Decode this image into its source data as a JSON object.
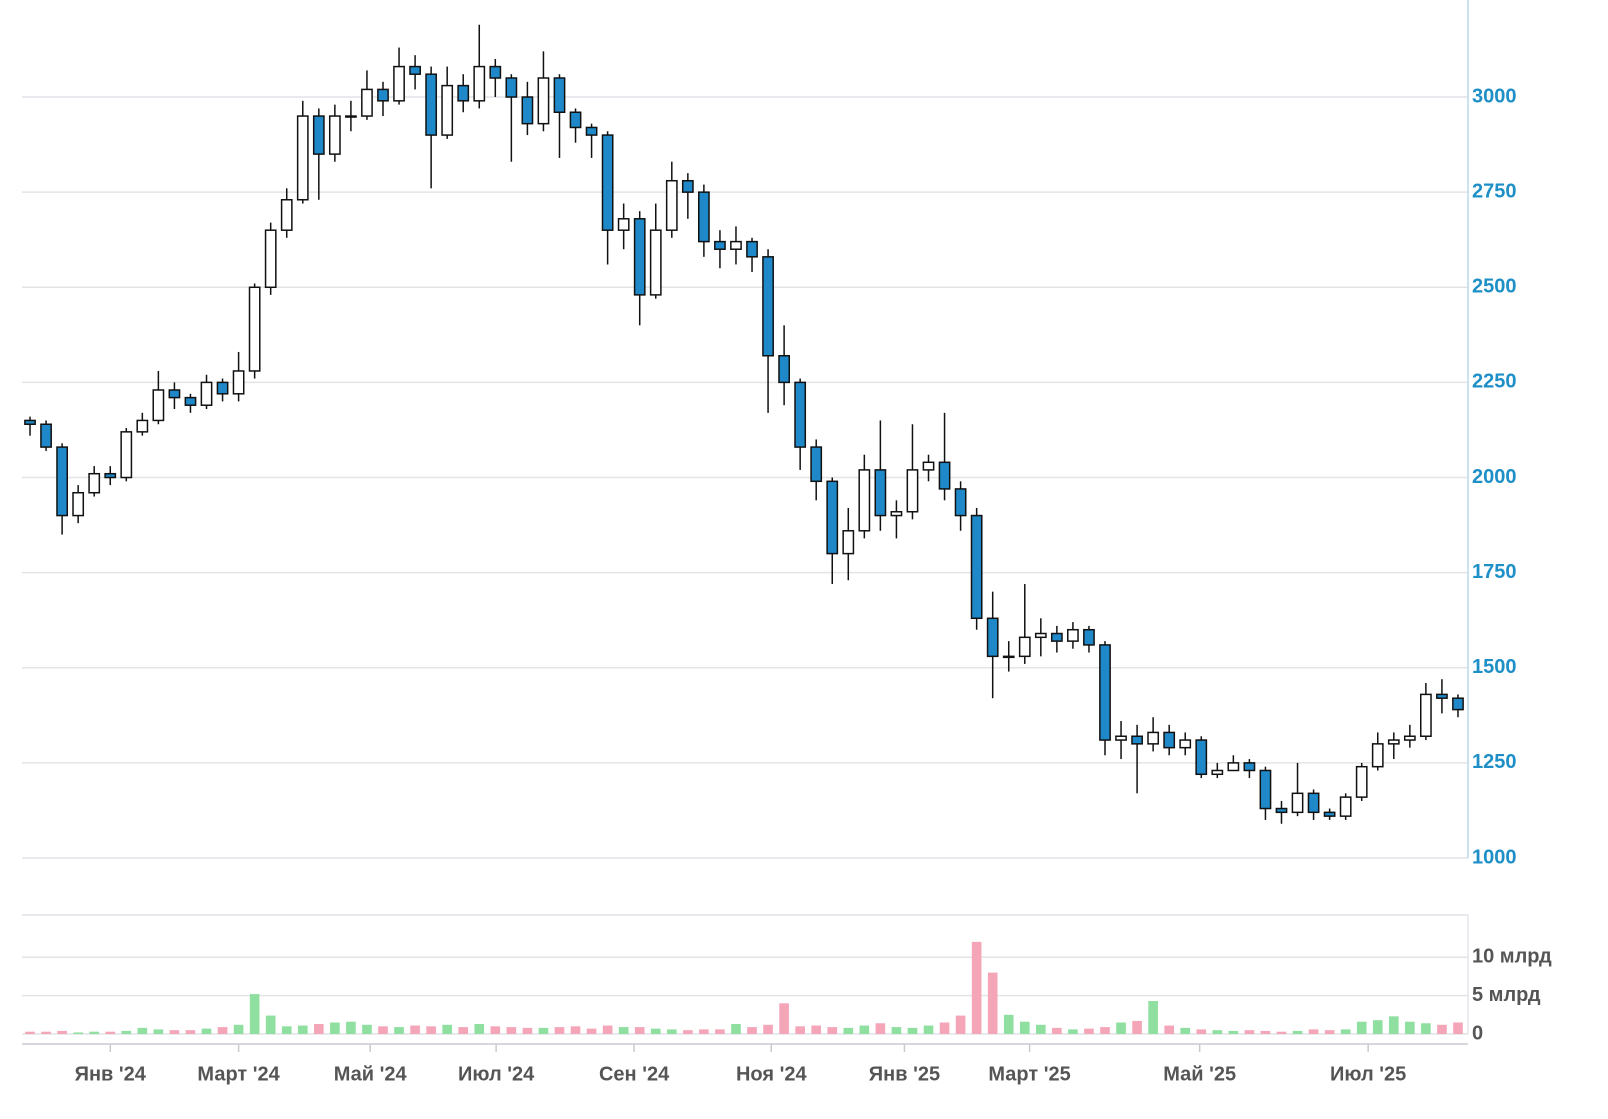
{
  "chart_data": {
    "type": "candlestick",
    "xlim": [
      -0.5,
      89.5
    ],
    "xticks": [
      {
        "value": 5.0,
        "label": "Янв '24"
      },
      {
        "value": 13.0,
        "label": "Март '24"
      },
      {
        "value": 21.2,
        "label": "Май '24"
      },
      {
        "value": 29.05,
        "label": "Июл '24"
      },
      {
        "value": 37.65,
        "label": "Сен '24"
      },
      {
        "value": 46.2,
        "label": "Ноя '24"
      },
      {
        "value": 54.5,
        "label": "Янв '25"
      },
      {
        "value": 62.3,
        "label": "Март '25"
      },
      {
        "value": 72.9,
        "label": "Май '25"
      },
      {
        "value": 83.4,
        "label": "Июл '25"
      }
    ],
    "ylim": [
      1000,
      3255
    ],
    "yticks": [
      1000,
      1250,
      1500,
      1750,
      2000,
      2250,
      2500,
      2750,
      3000
    ],
    "grid": true,
    "up_color": "#ffffff",
    "down_color": "#1e88c8",
    "open": [
      2150,
      2140,
      2080,
      1900,
      1960,
      2010,
      2000,
      2120,
      2150,
      2230,
      2210,
      2190,
      2250,
      2220,
      2280,
      2500,
      2650,
      2730,
      2950,
      2850,
      2950,
      2950,
      3020,
      2990,
      3080,
      3060,
      2900,
      3030,
      2990,
      3080,
      3050,
      3000,
      2930,
      3050,
      2960,
      2920,
      2900,
      2650,
      2680,
      2480,
      2650,
      2780,
      2750,
      2620,
      2600,
      2620,
      2580,
      2320,
      2250,
      2080,
      1990,
      1800,
      1860,
      2020,
      1900,
      1910,
      2020,
      2040,
      1970,
      1900,
      1630,
      1530,
      1530,
      1580,
      1590,
      1570,
      1600,
      1560,
      1310,
      1320,
      1300,
      1330,
      1290,
      1310,
      1220,
      1230,
      1250,
      1230,
      1130,
      1120,
      1170,
      1120,
      1110,
      1160,
      1240,
      1300,
      1310,
      1320,
      1430,
      1420
    ],
    "high": [
      2160,
      2150,
      2090,
      1980,
      2030,
      2030,
      2130,
      2170,
      2280,
      2250,
      2220,
      2270,
      2260,
      2330,
      2510,
      2670,
      2760,
      2990,
      2970,
      2980,
      2990,
      3070,
      3040,
      3130,
      3110,
      3080,
      3080,
      3060,
      3190,
      3100,
      3060,
      3040,
      3120,
      3060,
      2970,
      2930,
      2910,
      2720,
      2700,
      2720,
      2830,
      2800,
      2770,
      2650,
      2660,
      2630,
      2600,
      2400,
      2260,
      2100,
      2000,
      1920,
      2060,
      2150,
      1940,
      2140,
      2060,
      2170,
      1990,
      1920,
      1700,
      1570,
      1720,
      1630,
      1610,
      1620,
      1610,
      1570,
      1360,
      1350,
      1370,
      1350,
      1330,
      1320,
      1250,
      1270,
      1260,
      1240,
      1150,
      1250,
      1180,
      1130,
      1170,
      1250,
      1330,
      1330,
      1350,
      1460,
      1470,
      1430
    ],
    "low": [
      2110,
      2070,
      1850,
      1880,
      1950,
      1980,
      1990,
      2110,
      2140,
      2180,
      2170,
      2180,
      2200,
      2200,
      2260,
      2480,
      2630,
      2720,
      2730,
      2830,
      2910,
      2940,
      2950,
      2980,
      3020,
      2760,
      2890,
      2960,
      2970,
      3000,
      2830,
      2900,
      2910,
      2840,
      2880,
      2840,
      2560,
      2600,
      2400,
      2470,
      2630,
      2680,
      2580,
      2550,
      2560,
      2540,
      2170,
      2190,
      2020,
      1940,
      1720,
      1730,
      1840,
      1860,
      1840,
      1890,
      1990,
      1940,
      1860,
      1600,
      1420,
      1490,
      1510,
      1530,
      1540,
      1550,
      1540,
      1270,
      1260,
      1170,
      1280,
      1270,
      1270,
      1210,
      1210,
      1230,
      1210,
      1100,
      1090,
      1110,
      1100,
      1100,
      1100,
      1150,
      1230,
      1260,
      1290,
      1310,
      1380,
      1370
    ],
    "close": [
      2140,
      2080,
      1900,
      1960,
      2010,
      2000,
      2120,
      2150,
      2230,
      2210,
      2190,
      2250,
      2220,
      2280,
      2500,
      2650,
      2730,
      2950,
      2850,
      2950,
      2950,
      3020,
      2990,
      3080,
      3060,
      2900,
      3030,
      2990,
      3080,
      3050,
      3000,
      2930,
      3050,
      2960,
      2920,
      2900,
      2650,
      2680,
      2480,
      2650,
      2780,
      2750,
      2620,
      2600,
      2620,
      2580,
      2320,
      2250,
      2080,
      1990,
      1800,
      1860,
      2020,
      1900,
      1910,
      2020,
      2040,
      1970,
      1900,
      1630,
      1530,
      1530,
      1580,
      1590,
      1570,
      1600,
      1560,
      1310,
      1320,
      1300,
      1330,
      1290,
      1310,
      1220,
      1230,
      1250,
      1230,
      1130,
      1120,
      1170,
      1120,
      1110,
      1160,
      1240,
      1300,
      1310,
      1320,
      1430,
      1420,
      1390
    ],
    "volume": {
      "ylim": [
        0,
        15.5
      ],
      "yticks": [
        0,
        {
          "value": 5,
          "label": "5 млрд"
        },
        {
          "value": 10,
          "label": "10 млрд"
        }
      ],
      "up_color": "#8fe0a0",
      "down_color": "#f4a6b8",
      "values": [
        0.3,
        0.3,
        0.4,
        0.2,
        0.3,
        0.3,
        0.4,
        0.8,
        0.6,
        0.5,
        0.5,
        0.7,
        0.9,
        1.2,
        5.2,
        2.4,
        1.0,
        1.1,
        1.3,
        1.5,
        1.6,
        1.2,
        1.0,
        0.9,
        1.1,
        1.0,
        1.2,
        0.9,
        1.3,
        1.0,
        0.9,
        0.8,
        0.8,
        0.9,
        1.0,
        0.7,
        1.1,
        0.9,
        0.9,
        0.7,
        0.6,
        0.5,
        0.6,
        0.6,
        1.3,
        0.9,
        1.2,
        4.0,
        1.0,
        1.1,
        0.9,
        0.8,
        1.1,
        1.4,
        0.9,
        0.8,
        1.1,
        1.5,
        2.4,
        12.0,
        8.0,
        2.5,
        1.6,
        1.2,
        0.8,
        0.6,
        0.7,
        0.9,
        1.5,
        1.7,
        4.3,
        1.1,
        0.8,
        0.6,
        0.5,
        0.4,
        0.5,
        0.4,
        0.3,
        0.4,
        0.6,
        0.5,
        0.6,
        1.6,
        1.8,
        2.3,
        1.6,
        1.4,
        1.2,
        1.5
      ]
    }
  }
}
